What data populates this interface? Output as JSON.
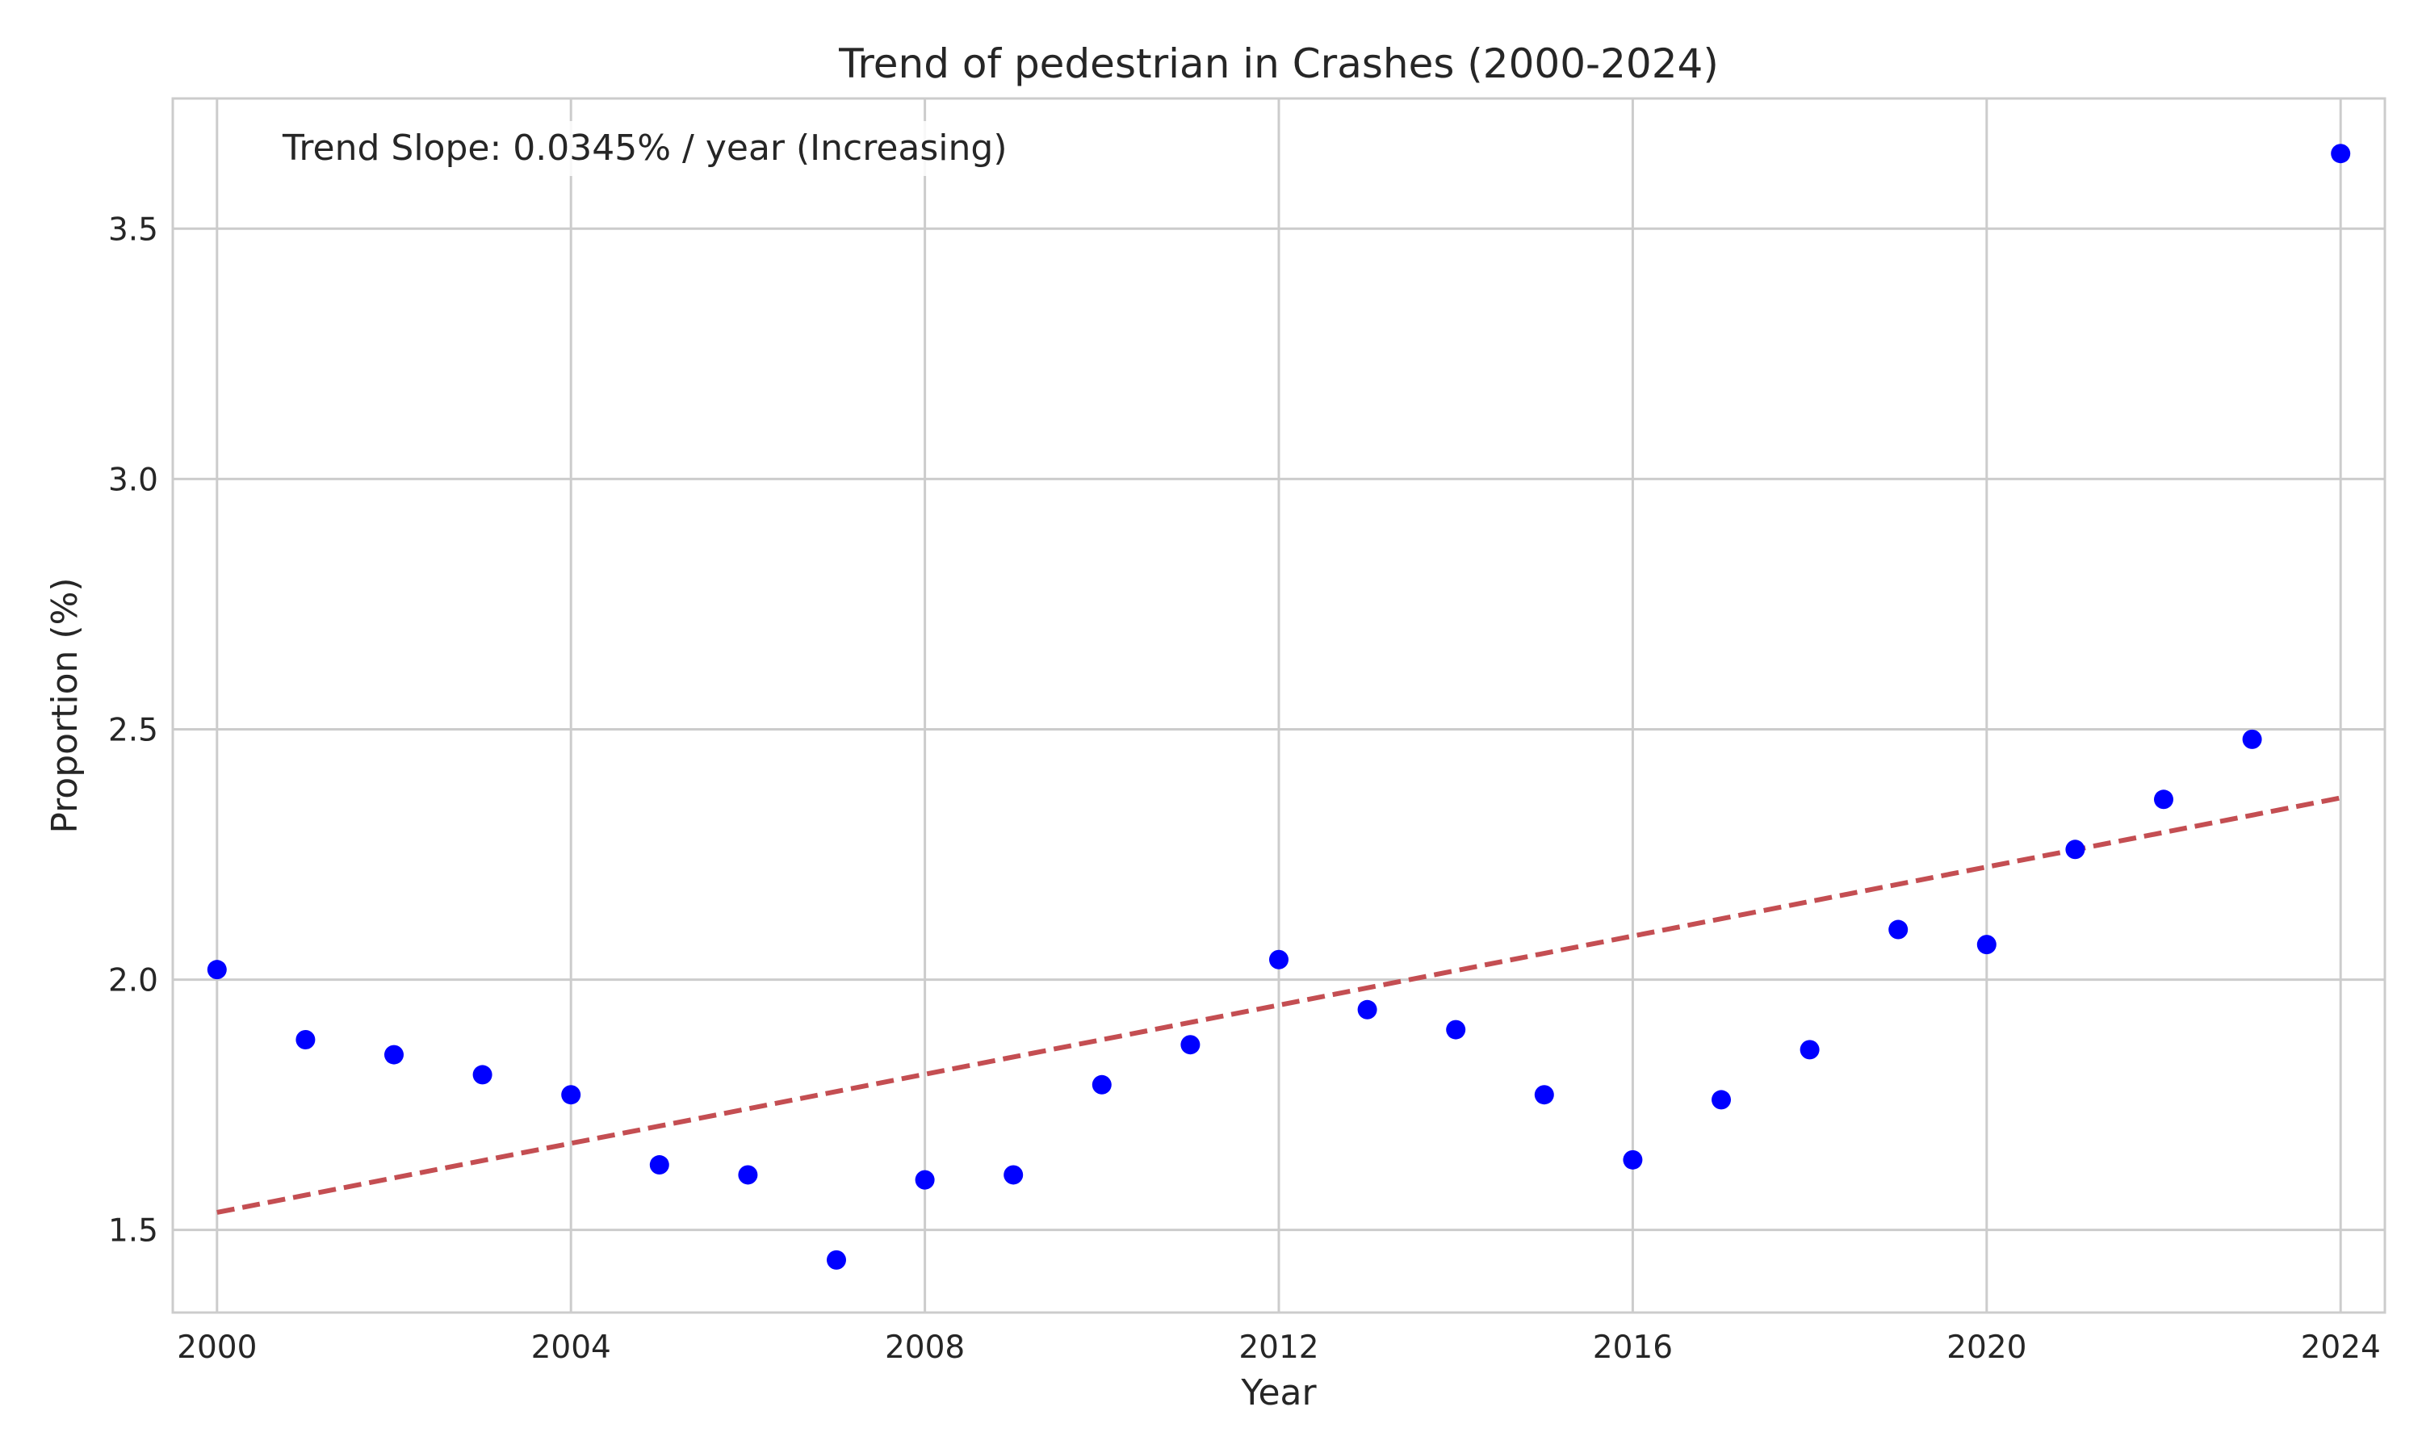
{
  "chart_data": {
    "type": "scatter",
    "title": "Trend of pedestrian in Crashes (2000-2024)",
    "xlabel": "Year",
    "ylabel": "Proportion (%)",
    "xlim": [
      1999.5,
      2024.5
    ],
    "ylim": [
      1.335,
      3.76
    ],
    "x_ticks": [
      2000,
      2004,
      2008,
      2012,
      2016,
      2020,
      2024
    ],
    "y_ticks": [
      1.5,
      2.0,
      2.5,
      3.0,
      3.5
    ],
    "y_tick_labels": [
      "1.5",
      "2.0",
      "2.5",
      "3.0",
      "3.5"
    ],
    "grid": true,
    "colors": {
      "points": "#0000ff",
      "trend": "#c44e52"
    },
    "series": [
      {
        "type": "scatter",
        "x": [
          2000,
          2001,
          2002,
          2003,
          2004,
          2005,
          2006,
          2007,
          2008,
          2009,
          2010,
          2011,
          2012,
          2013,
          2014,
          2015,
          2016,
          2017,
          2018,
          2019,
          2020,
          2021,
          2022,
          2023,
          2024
        ],
        "y": [
          2.02,
          1.88,
          1.85,
          1.81,
          1.77,
          1.63,
          1.61,
          1.44,
          1.6,
          1.61,
          1.79,
          1.87,
          2.04,
          1.94,
          1.9,
          1.77,
          1.64,
          1.76,
          1.86,
          2.1,
          2.07,
          2.26,
          2.36,
          2.48,
          3.65
        ]
      },
      {
        "type": "line",
        "style": "dashed",
        "x": [
          2000,
          2024
        ],
        "y": [
          1.535,
          2.363
        ]
      }
    ],
    "annotation": "Trend Slope: 0.0345% / year (Increasing)"
  }
}
